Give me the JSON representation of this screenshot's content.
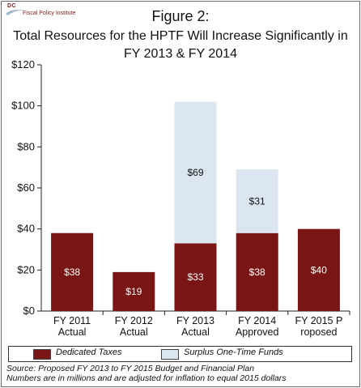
{
  "header": {
    "logo_abbrev": "DC",
    "logo_name": "Fiscal Policy Institute",
    "title_line1": "Figure 2:",
    "title_line2": "Total Resources for the HPTF Will Increase Significantly in",
    "title_line3": "FY 2013 & FY 2014"
  },
  "chart_data": {
    "type": "bar",
    "stacked": true,
    "categories": [
      [
        "FY 2011",
        "Actual"
      ],
      [
        "FY 2012",
        "Actual"
      ],
      [
        "FY 2013",
        "Actual"
      ],
      [
        "FY 2014",
        "Approved"
      ],
      [
        "FY 2015 P",
        "roposed"
      ]
    ],
    "series": [
      {
        "name": "Dedicated Taxes",
        "values": [
          38,
          19,
          33,
          38,
          40
        ],
        "labels": [
          "$38",
          "$19",
          "$33",
          "$38",
          "$40"
        ],
        "color": "#7a1515"
      },
      {
        "name": "Surplus One-Time Funds",
        "values": [
          0,
          0,
          69,
          31,
          0
        ],
        "labels": [
          "",
          "",
          "$69",
          "$31",
          ""
        ],
        "color": "#dbe6f1"
      }
    ],
    "ylim": [
      0,
      120
    ],
    "yticks": [
      "$0",
      "$20",
      "$40",
      "$60",
      "$80",
      "$100",
      "$120"
    ],
    "grid": false,
    "legend_position": "bottom"
  },
  "legend": {
    "items": [
      {
        "label": "Dedicated Taxes",
        "color": "#7a1515"
      },
      {
        "label": "Surplus One-Time Funds",
        "color": "#dbe6f1"
      }
    ]
  },
  "footer": {
    "source": "Source: Proposed FY 2013 to FY 2015 Budget and Financial Plan",
    "note": "Numbers are in millions and are adjusted for inflation to equal 2015 dollars"
  }
}
